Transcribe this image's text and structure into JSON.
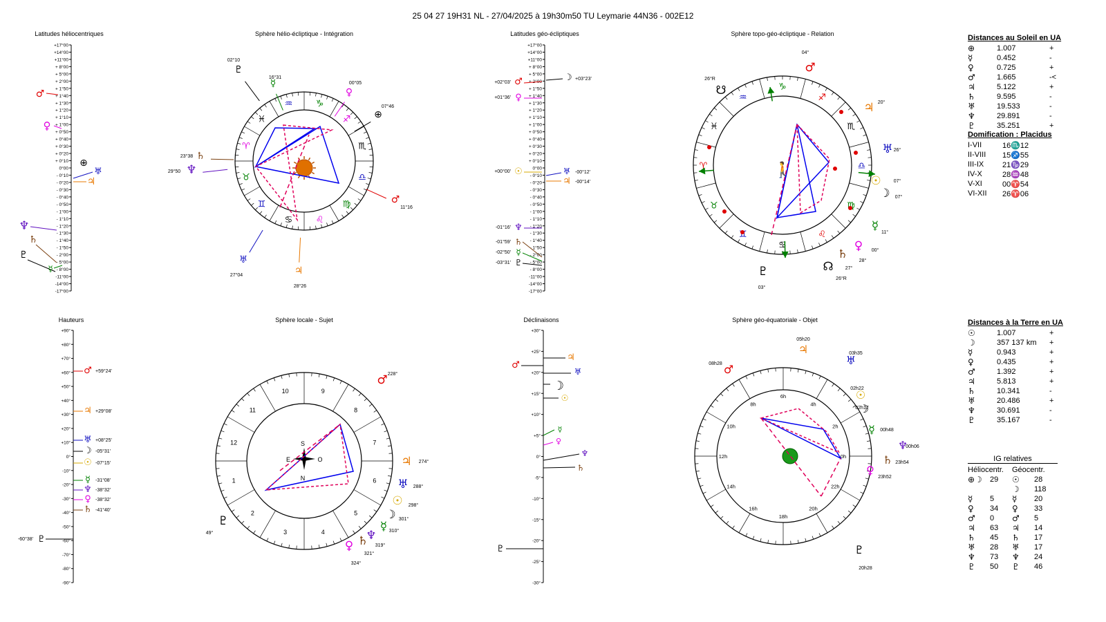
{
  "header": "25 04 27 19H31 NL   -  27/04/2025 à 19h30m50 TU  Leymarie  44N36 - 002E12",
  "colors": {
    "mars": "#e00000",
    "venus": "#e000e0",
    "mercury": "#008000",
    "jupiter": "#e87800",
    "saturn": "#7a4010",
    "uranus": "#1010c0",
    "neptune": "#6010c0",
    "pluto": "#000000",
    "sun": "#d6a800",
    "aspect_blue": "#0000ee",
    "aspect_red": "#e0005a"
  },
  "glyphs": {
    "earth": "⊕",
    "sun": "☉",
    "moon": "☽",
    "mercury": "☿",
    "venus": "♀",
    "mars": "♂",
    "jupiter": "♃",
    "saturn": "♄",
    "uranus": "♅",
    "neptune": "♆",
    "pluto": "♇",
    "node": "☊",
    "south_node": "☋",
    "earth_moon": "⊕☽",
    "man": "🚶",
    "globe": "🌍"
  },
  "zodiac_glyphs": [
    "♈",
    "♉",
    "♊",
    "♋",
    "♌",
    "♍",
    "♎",
    "♏",
    "♐",
    "♑",
    "♒",
    "♓"
  ],
  "panels": {
    "helio_lat": {
      "title": "Latitudes héliocentriques",
      "ticks": [
        "+17°00",
        "+14°00",
        "+11°00",
        "+ 8°00",
        "+ 5°00",
        "+ 2°00",
        "+ 1°50",
        "+ 1°40",
        "+ 1°30",
        "+ 1°20",
        "+ 1°10",
        "+ 1°00",
        "+ 0°50",
        "+ 0°40",
        "+ 0°30",
        "+ 0°20",
        "+ 0°10",
        "0°00",
        "- 0°10",
        "- 0°20",
        "- 0°30",
        "- 0°40",
        "- 0°50",
        "- 1°00",
        "- 1°10",
        "- 1°20",
        "- 1°30",
        "- 1°40",
        "- 1°50",
        "- 2°00",
        "- 5°00",
        "- 8°00",
        "-11°00",
        "-14°00",
        "-17°00"
      ]
    },
    "helio_sphere": {
      "title": "Sphère hélio-écliptique - Intégration",
      "labels": [
        "02°10",
        "16°31",
        "00°05",
        "07°46",
        "23°38",
        "29°50",
        "11°16",
        "27°04",
        "28°26"
      ]
    },
    "geo_lat": {
      "title": "Latitudes géo-écliptiques",
      "ticks": [
        "+17°00",
        "+14°00",
        "+11°00",
        "+ 8°00",
        "+ 5°00",
        "+ 2°00",
        "+ 1°50",
        "+ 1°40",
        "+ 1°30",
        "+ 1°20",
        "+ 1°10",
        "+ 1°00",
        "+ 0°50",
        "+ 0°40",
        "+ 0°30",
        "+ 0°20",
        "+ 0°10",
        "0°00",
        "- 0°10",
        "- 0°20",
        "- 0°30",
        "- 0°40",
        "- 0°50",
        "- 1°00",
        "- 1°10",
        "- 1°20",
        "- 1°30",
        "- 1°40",
        "- 1°50",
        "- 2°00",
        "- 5°00",
        "- 8°00",
        "-11°00",
        "-14°00",
        "-17°00"
      ],
      "labels": [
        "+02°03'",
        "+03°23'",
        "+01°36'",
        "+00°00'",
        "-00°12'",
        "-00°14'",
        "-01°16'",
        "-01°59'",
        "-02°50'",
        "-03°31'"
      ]
    },
    "topo_sphere": {
      "title": "Sphère topo-géo-écliptique - Relation",
      "labels": [
        "04°",
        "26°R",
        "20°",
        "26°",
        "07°",
        "07°",
        "11°",
        "00°",
        "28°",
        "27°",
        "26°R",
        "03°"
      ]
    },
    "heights": {
      "title": "Hauteurs",
      "ticks": [
        "+90°",
        "+80°",
        "+70°",
        "+60°",
        "+50°",
        "+40°",
        "+30°",
        "+20°",
        "+10°",
        "0°",
        "-10°",
        "-20°",
        "-30°",
        "-40°",
        "-50°",
        "-60°",
        "-70°",
        "-80°",
        "-90°"
      ],
      "labels": [
        "+59°24'",
        "+29°08'",
        "+08°25'",
        "-05°31'",
        "-07°15'",
        "-31°08'",
        "-38°32'",
        "-38°32'",
        "-41°40'",
        "-60°38'"
      ]
    },
    "local_sphere": {
      "title": "Sphère locale - Sujet",
      "houses": [
        "10",
        "9",
        "8",
        "7",
        "6",
        "5",
        "4",
        "3",
        "2",
        "1",
        "12",
        "11"
      ],
      "compass": [
        "S",
        "E",
        "O",
        "N"
      ],
      "labels": [
        "228°",
        "274°",
        "288°",
        "298°",
        "301°",
        "310°",
        "319°",
        "321°",
        "324°",
        "49°"
      ]
    },
    "declinations": {
      "title": "Déclinaisons",
      "ticks": [
        "+30°",
        "+25°",
        "+20°",
        "+15°",
        "+10°",
        "+5°",
        "0°",
        "-5°",
        "-10°",
        "-15°",
        "-20°",
        "-25°",
        "-30°"
      ]
    },
    "equatorial_sphere": {
      "title": "Sphère géo-équatoriale - Objet",
      "hours": [
        "0h",
        "2h",
        "4h",
        "6h",
        "8h",
        "10h",
        "12h",
        "14h",
        "16h",
        "18h",
        "20h",
        "22h"
      ],
      "labels": [
        "05h20",
        "03h35",
        "08h28",
        "02h22",
        "02h17",
        "00h48",
        "00h06",
        "23h54",
        "23h52",
        "20h28"
      ]
    }
  },
  "sun_distances": {
    "title": "Distances au Soleil en UA",
    "rows": [
      {
        "g": "⊕",
        "v": "1.007",
        "s": "+"
      },
      {
        "g": "☿",
        "v": "0.452",
        "s": "-"
      },
      {
        "g": "♀",
        "v": "0.725",
        "s": "+"
      },
      {
        "g": "♂",
        "v": "1.665",
        "s": "-<"
      },
      {
        "g": "♃",
        "v": "5.122",
        "s": "+"
      },
      {
        "g": "♄",
        "v": "9.595",
        "s": "-"
      },
      {
        "g": "♅",
        "v": "19.533",
        "s": "-"
      },
      {
        "g": "♆",
        "v": "29.891",
        "s": "-"
      },
      {
        "g": "♇",
        "v": "35.251",
        "s": "+"
      }
    ]
  },
  "domification": {
    "title": "Domification : Placidus",
    "rows": [
      {
        "k": "I-VII",
        "v": "16♏12"
      },
      {
        "k": "II-VIII",
        "v": "15♐55"
      },
      {
        "k": "III-IX",
        "v": "21♑29"
      },
      {
        "k": "IV-X",
        "v": "28♒48"
      },
      {
        "k": "V-XI",
        "v": "00♈54"
      },
      {
        "k": "VI-XII",
        "v": "26♈06"
      }
    ]
  },
  "earth_distances": {
    "title": "Distances à la Terre en UA",
    "rows": [
      {
        "g": "☉",
        "v": "1.007",
        "s": "+"
      },
      {
        "g": "☽",
        "v": "357 137 km",
        "s": "+"
      },
      {
        "g": "☿",
        "v": "0.943",
        "s": "+"
      },
      {
        "g": "♀",
        "v": "0.435",
        "s": "+"
      },
      {
        "g": "♂",
        "v": "1.392",
        "s": "+"
      },
      {
        "g": "♃",
        "v": "5.813",
        "s": "+"
      },
      {
        "g": "♄",
        "v": "10.341",
        "s": "-"
      },
      {
        "g": "♅",
        "v": "20.486",
        "s": "+"
      },
      {
        "g": "♆",
        "v": "30.691",
        "s": "-"
      },
      {
        "g": "♇",
        "v": "35.167",
        "s": "-"
      }
    ]
  },
  "ig": {
    "title": "IG relatives",
    "col1": "Héliocentr.",
    "col2": "Géocentr.",
    "rows": [
      {
        "hg": "⊕☽",
        "hv": "29",
        "gg": "☉",
        "gv": "28"
      },
      {
        "hg": "",
        "hv": "",
        "gg": "☽",
        "gv": "118"
      },
      {
        "hg": "☿",
        "hv": "5",
        "gg": "☿",
        "gv": "20"
      },
      {
        "hg": "♀",
        "hv": "34",
        "gg": "♀",
        "gv": "33"
      },
      {
        "hg": "♂",
        "hv": "0",
        "gg": "♂",
        "gv": "5"
      },
      {
        "hg": "♃",
        "hv": "63",
        "gg": "♃",
        "gv": "14"
      },
      {
        "hg": "♄",
        "hv": "45",
        "gg": "♄",
        "gv": "17"
      },
      {
        "hg": "♅",
        "hv": "28",
        "gg": "♅",
        "gv": "17"
      },
      {
        "hg": "♆",
        "hv": "73",
        "gg": "♆",
        "gv": "24"
      },
      {
        "hg": "♇",
        "hv": "50",
        "gg": "♇",
        "gv": "46"
      }
    ]
  }
}
